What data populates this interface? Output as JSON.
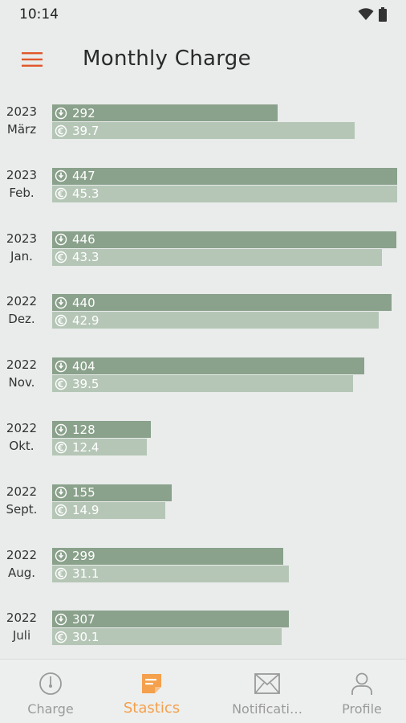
{
  "status_bar": {
    "time": "10:14"
  },
  "header": {
    "title": "Monthly Charge"
  },
  "colors": {
    "accent": "#e0582b",
    "bar_primary": "#8aa18b",
    "bar_secondary": "#b5c6b6",
    "nav_active": "#f4a04c"
  },
  "chart_data": {
    "type": "bar",
    "orientation": "horizontal",
    "categories": [
      "2023 März",
      "2023 Feb.",
      "2023 Jan.",
      "2022 Dez.",
      "2022 Nov.",
      "2022 Okt.",
      "2022 Sept.",
      "2022 Aug.",
      "2022 Juli"
    ],
    "rows": [
      {
        "year": "2023",
        "month": "März",
        "primary": "292",
        "secondary": "39.7"
      },
      {
        "year": "2023",
        "month": "Feb.",
        "primary": "447",
        "secondary": "45.3"
      },
      {
        "year": "2023",
        "month": "Jan.",
        "primary": "446",
        "secondary": "43.3"
      },
      {
        "year": "2022",
        "month": "Dez.",
        "primary": "440",
        "secondary": "42.9"
      },
      {
        "year": "2022",
        "month": "Nov.",
        "primary": "404",
        "secondary": "39.5"
      },
      {
        "year": "2022",
        "month": "Okt.",
        "primary": "128",
        "secondary": "12.4"
      },
      {
        "year": "2022",
        "month": "Sept.",
        "primary": "155",
        "secondary": "14.9"
      },
      {
        "year": "2022",
        "month": "Aug.",
        "primary": "299",
        "secondary": "31.1"
      },
      {
        "year": "2022",
        "month": "Juli",
        "primary": "307",
        "secondary": "30.1"
      }
    ],
    "series": [
      {
        "icon": "power-icon",
        "values": [
          292,
          447,
          446,
          440,
          404,
          128,
          155,
          299,
          307
        ]
      },
      {
        "icon": "euro-icon",
        "values": [
          39.7,
          45.3,
          43.3,
          42.9,
          39.5,
          12.4,
          14.9,
          31.1,
          30.1
        ]
      }
    ]
  },
  "bottom_nav": {
    "items": [
      {
        "label": "Charge",
        "icon": "gauge-icon",
        "active": false
      },
      {
        "label": "Stastics",
        "icon": "notepad-icon",
        "active": true
      },
      {
        "label": "Notificati…",
        "icon": "mail-icon",
        "active": false
      },
      {
        "label": "Profile",
        "icon": "person-icon",
        "active": false
      }
    ]
  }
}
